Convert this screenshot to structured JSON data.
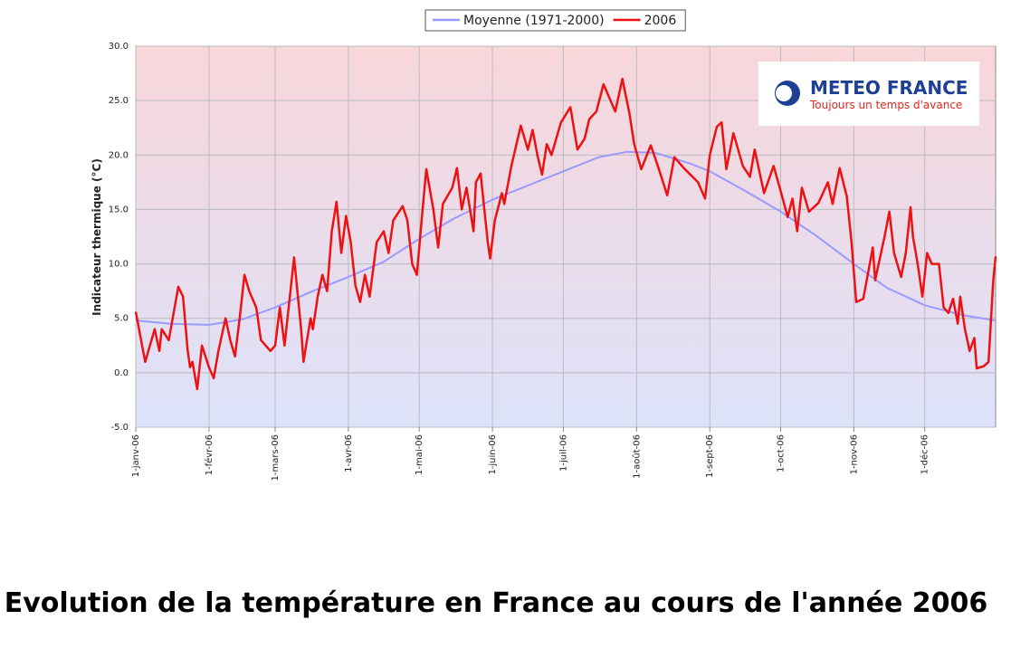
{
  "chart_data": {
    "type": "line",
    "caption": "Evolution de la température en France au cours de l'année 2006",
    "logo": {
      "name": "METEO FRANCE",
      "slogan": "Toujours un temps d'avance"
    },
    "ylabel": "Indicateur thermique (°C)",
    "xlim": [
      0,
      364
    ],
    "xticks": [
      {
        "value": 0,
        "label": "1-janv-06"
      },
      {
        "value": 31,
        "label": "1-févr-06"
      },
      {
        "value": 59,
        "label": "1-mars-06"
      },
      {
        "value": 90,
        "label": "1-avr-06"
      },
      {
        "value": 120,
        "label": "1-mai-06"
      },
      {
        "value": 151,
        "label": "1-juin-06"
      },
      {
        "value": 181,
        "label": "1-juil-06"
      },
      {
        "value": 212,
        "label": "1-août-06"
      },
      {
        "value": 243,
        "label": "1-sept-06"
      },
      {
        "value": 273,
        "label": "1-oct-06"
      },
      {
        "value": 304,
        "label": "1-nov-06"
      },
      {
        "value": 334,
        "label": "1-déc-06"
      }
    ],
    "ylim": [
      -5,
      30
    ],
    "yticks": [
      {
        "value": -5,
        "label": "-5.0"
      },
      {
        "value": 0,
        "label": "0.0"
      },
      {
        "value": 5,
        "label": "5.0"
      },
      {
        "value": 10,
        "label": "10.0"
      },
      {
        "value": 15,
        "label": "15.0"
      },
      {
        "value": 20,
        "label": "20.0"
      },
      {
        "value": 25,
        "label": "25.0"
      },
      {
        "value": 30,
        "label": "30.0"
      }
    ],
    "grid": true,
    "legend": "top",
    "series": [
      {
        "name": "Moyenne (1971-2000)",
        "color": "#9999ff",
        "x": [
          0,
          15,
          31,
          45,
          59,
          75,
          90,
          105,
          120,
          135,
          151,
          166,
          181,
          196,
          208,
          220,
          235,
          243,
          258,
          273,
          288,
          304,
          318,
          334,
          350,
          364
        ],
        "values": [
          4.8,
          4.5,
          4.4,
          4.9,
          6.0,
          7.5,
          8.8,
          10.2,
          12.3,
          14.2,
          15.9,
          17.2,
          18.5,
          19.8,
          20.3,
          20.2,
          19.2,
          18.5,
          16.7,
          14.8,
          12.6,
          10.0,
          7.8,
          6.2,
          5.3,
          4.8
        ]
      },
      {
        "name": "2006",
        "color": "#ee1111",
        "x": [
          0,
          4,
          8,
          10,
          11,
          14,
          18,
          20,
          22,
          23,
          24,
          26,
          28,
          31,
          33,
          35,
          38,
          40,
          42,
          44,
          46,
          48,
          51,
          53,
          57,
          59,
          61,
          63,
          67,
          70,
          71,
          74,
          75,
          77,
          79,
          81,
          83,
          85,
          87,
          89,
          91,
          93,
          95,
          97,
          99,
          102,
          105,
          107,
          109,
          113,
          115,
          117,
          119,
          121,
          123,
          126,
          128,
          130,
          134,
          136,
          138,
          140,
          143,
          144,
          146,
          149,
          150,
          152,
          155,
          156,
          159,
          163,
          166,
          168,
          170,
          172,
          174,
          176,
          180,
          184,
          187,
          190,
          192,
          195,
          198,
          203,
          206,
          209,
          211,
          214,
          218,
          221,
          225,
          228,
          232,
          238,
          241,
          243,
          246,
          248,
          250,
          253,
          257,
          260,
          262,
          266,
          270,
          273,
          276,
          278,
          280,
          282,
          285,
          289,
          293,
          295,
          298,
          301,
          303,
          305,
          308,
          312,
          313,
          317,
          319,
          321,
          324,
          326,
          328,
          329,
          331,
          333,
          335,
          337,
          340,
          342,
          344,
          346,
          348,
          349,
          351,
          353,
          355,
          356,
          359,
          361,
          363,
          364
        ],
        "values": [
          5.6,
          1.0,
          4.0,
          2.0,
          4.0,
          3.0,
          7.9,
          7.0,
          2.0,
          0.5,
          1.0,
          -1.5,
          2.5,
          0.5,
          -0.5,
          2.0,
          5.0,
          3.0,
          1.5,
          5.0,
          9.0,
          7.5,
          6.0,
          3.0,
          2.0,
          2.5,
          6.0,
          2.5,
          10.6,
          4.0,
          1.0,
          5.0,
          4.0,
          7.0,
          9.0,
          7.5,
          13.0,
          15.7,
          11.0,
          14.4,
          12.0,
          8.0,
          6.5,
          9.0,
          7.0,
          12.0,
          13.0,
          11.0,
          14.0,
          15.3,
          14.0,
          10.0,
          9.0,
          14.0,
          18.7,
          15.0,
          11.5,
          15.5,
          17.0,
          18.8,
          15.0,
          17.0,
          13.0,
          17.5,
          18.3,
          12.0,
          10.5,
          14.0,
          16.5,
          15.5,
          19.0,
          22.7,
          20.5,
          22.3,
          20.0,
          18.2,
          21.0,
          20.0,
          23.0,
          24.4,
          20.5,
          21.5,
          23.3,
          24.0,
          26.5,
          24.0,
          27.0,
          23.8,
          21.0,
          18.7,
          20.9,
          19.0,
          16.3,
          19.8,
          18.8,
          17.5,
          16.0,
          20.0,
          22.6,
          23.0,
          18.7,
          22.0,
          19.0,
          18.0,
          20.5,
          16.5,
          19.0,
          16.7,
          14.3,
          16.0,
          13.0,
          17.0,
          14.8,
          15.6,
          17.5,
          15.5,
          18.8,
          16.2,
          12.0,
          6.5,
          6.8,
          11.5,
          8.5,
          12.5,
          14.8,
          11.0,
          8.8,
          11.0,
          15.2,
          12.5,
          10.0,
          7.0,
          11.0,
          10.0,
          10.0,
          6.0,
          5.5,
          6.8,
          4.5,
          7.0,
          4.0,
          2.0,
          3.2,
          0.4,
          0.6,
          1.0,
          8.5,
          10.7
        ]
      }
    ]
  }
}
